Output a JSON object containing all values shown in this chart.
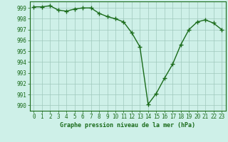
{
  "x": [
    0,
    1,
    2,
    3,
    4,
    5,
    6,
    7,
    8,
    9,
    10,
    11,
    12,
    13,
    14,
    15,
    16,
    17,
    18,
    19,
    20,
    21,
    22,
    23
  ],
  "y": [
    999.1,
    999.1,
    999.2,
    998.8,
    998.7,
    998.9,
    999.0,
    999.0,
    998.5,
    998.2,
    998.0,
    997.7,
    996.7,
    995.4,
    990.1,
    991.1,
    992.5,
    993.8,
    995.6,
    997.0,
    997.7,
    997.9,
    997.6,
    997.0
  ],
  "line_color": "#1a6b1a",
  "marker": "+",
  "marker_size": 4,
  "marker_linewidth": 1.0,
  "line_width": 1.0,
  "bg_color": "#cef0e8",
  "grid_color": "#a0c8bc",
  "xlabel": "Graphe pression niveau de la mer (hPa)",
  "xlabel_color": "#1a6b1a",
  "tick_color": "#1a6b1a",
  "spine_color": "#1a6b1a",
  "ylabel_ticks": [
    990,
    991,
    992,
    993,
    994,
    995,
    996,
    997,
    998,
    999
  ],
  "xlim": [
    -0.5,
    23.5
  ],
  "ylim": [
    989.5,
    999.6
  ],
  "xticks": [
    0,
    1,
    2,
    3,
    4,
    5,
    6,
    7,
    8,
    9,
    10,
    11,
    12,
    13,
    14,
    15,
    16,
    17,
    18,
    19,
    20,
    21,
    22,
    23
  ],
  "tick_fontsize": 5.5,
  "xlabel_fontsize": 6.0
}
